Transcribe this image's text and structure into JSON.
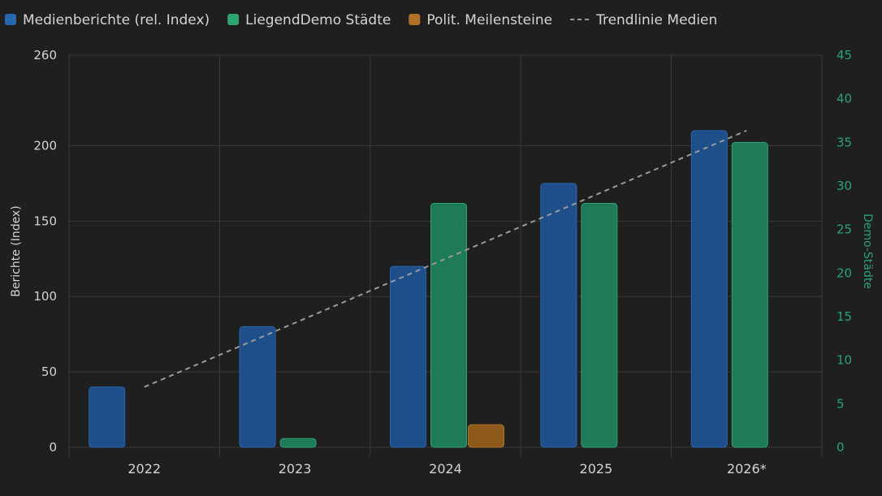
{
  "chart_data": {
    "type": "bar",
    "categories": [
      "2022",
      "2023",
      "2024",
      "2025",
      "2026*"
    ],
    "series": [
      {
        "name": "Medienberichte (rel. Index)",
        "axis": "left",
        "color": "#1e4f8a",
        "stroke": "#2a66ad",
        "values": [
          40,
          80,
          120,
          175,
          210
        ]
      },
      {
        "name": "LiegendDemo Städte",
        "axis": "right",
        "color": "#1f7a58",
        "stroke": "#2ea374",
        "values": [
          null,
          1,
          28,
          28,
          35
        ]
      },
      {
        "name": "Polit. Meilensteine",
        "axis": "left",
        "color": "#8e5a1c",
        "stroke": "#b07228",
        "values": [
          null,
          null,
          15,
          null,
          null
        ]
      }
    ],
    "trendline": {
      "name": "Trendlinie Medien",
      "color": "#9a9a9a",
      "start": 40,
      "end": 210
    },
    "ylabel_left": "Berichte (Index)",
    "ylabel_right": "Demo-Städte",
    "ylim_left": [
      0,
      260
    ],
    "yticks_left": [
      0,
      50,
      100,
      150,
      200,
      260
    ],
    "ylim_right": [
      0,
      45
    ],
    "yticks_right": [
      0,
      5,
      10,
      15,
      20,
      25,
      30,
      35,
      40,
      45
    ],
    "legend_position": "top-left",
    "grid": true,
    "colors": {
      "background": "#1f1f1f",
      "grid": "#3a3a3a",
      "text": "#d4d4d4",
      "right_axis": "#27a37a"
    }
  }
}
